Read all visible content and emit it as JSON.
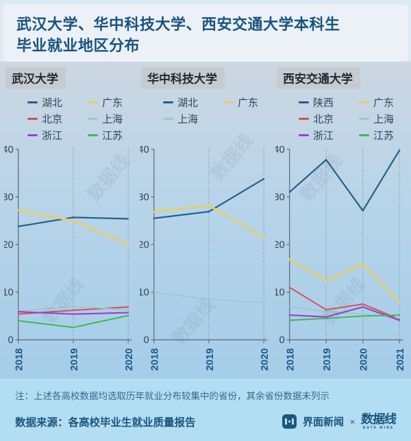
{
  "title": {
    "line1": "武汉大学、华中科技大学、西安交通大学本科生",
    "line2": "毕业就业地区分布"
  },
  "colors": {
    "axis": "#5b6770",
    "grid": "#5b6770",
    "tick_label": "#39424a",
    "year_label": "#1d5a87",
    "title": "#19537f",
    "panel_header_bg": "#c7cbcf",
    "accent": "#1a567f"
  },
  "watermark_text": "数据线",
  "chart_data": [
    {
      "type": "line",
      "title": "武汉大学",
      "x": [
        "2018",
        "2019",
        "2020"
      ],
      "ylim": [
        0,
        40
      ],
      "yticks": [
        0,
        10,
        20,
        30,
        40
      ],
      "grid": "dotted-vertical",
      "legend_position": "top",
      "series": [
        {
          "name": "湖北",
          "color": "#235e88",
          "width": 2.2,
          "values": [
            23.8,
            25.7,
            25.4
          ]
        },
        {
          "name": "广东",
          "color": "#e5cf6d",
          "width": 3,
          "values": [
            27.2,
            25.0,
            20.1
          ]
        },
        {
          "name": "北京",
          "color": "#d5504d",
          "width": 2,
          "values": [
            5.4,
            6.2,
            6.9
          ]
        },
        {
          "name": "上海",
          "color": "#9ec7c3",
          "width": 1.6,
          "values": [
            6.1,
            7.0,
            6.3
          ]
        },
        {
          "name": "浙江",
          "color": "#a23ad6",
          "width": 2.2,
          "values": [
            5.9,
            5.4,
            5.7
          ]
        },
        {
          "name": "江苏",
          "color": "#3dba51",
          "width": 2,
          "values": [
            4.0,
            2.6,
            5.1
          ]
        }
      ]
    },
    {
      "type": "line",
      "title": "华中科技大学",
      "x": [
        "2018",
        "2019",
        "2020"
      ],
      "ylim": [
        0,
        40
      ],
      "yticks": [
        0,
        10,
        20,
        30,
        40
      ],
      "grid": "dotted-vertical",
      "legend_position": "top",
      "series": [
        {
          "name": "湖北",
          "color": "#235e88",
          "width": 2.2,
          "values": [
            25.5,
            26.9,
            33.8
          ]
        },
        {
          "name": "广东",
          "color": "#e5cf6d",
          "width": 3,
          "values": [
            26.9,
            28.2,
            21.5
          ]
        },
        {
          "name": "上海",
          "color": "#9ec7c3",
          "width": 1.6,
          "values": [
            10.0,
            8.5,
            7.8
          ]
        }
      ]
    },
    {
      "type": "line",
      "title": "西安交通大学",
      "x": [
        "2018",
        "2019",
        "2020",
        "2021"
      ],
      "ylim": [
        0,
        40
      ],
      "yticks": [
        0,
        10,
        20,
        30,
        40
      ],
      "grid": "dotted-vertical",
      "legend_position": "top",
      "series": [
        {
          "name": "陕西",
          "color": "#235e88",
          "width": 2.2,
          "values": [
            31.0,
            37.8,
            27.1,
            39.8
          ]
        },
        {
          "name": "广东",
          "color": "#e5cf6d",
          "width": 3,
          "values": [
            16.9,
            12.4,
            15.9,
            7.9
          ]
        },
        {
          "name": "北京",
          "color": "#d5504d",
          "width": 2,
          "values": [
            11.0,
            6.3,
            7.5,
            4.3
          ]
        },
        {
          "name": "上海",
          "color": "#9ec7c3",
          "width": 1.6,
          "values": [
            7.0,
            5.9,
            5.4,
            4.5
          ]
        },
        {
          "name": "浙江",
          "color": "#a23ad6",
          "width": 2.2,
          "values": [
            5.2,
            4.8,
            6.9,
            4.1
          ]
        },
        {
          "name": "江苏",
          "color": "#3dba51",
          "width": 2,
          "values": [
            4.1,
            4.5,
            5.0,
            5.2
          ]
        }
      ]
    }
  ],
  "footer": {
    "note": "注：上述各高校数据均选取历年就业分布较集中的省份，其余省份数据未列示",
    "source": "数据来源：各高校毕业生就业质量报告",
    "brand": {
      "jiemian": "界面新闻",
      "cross": "×",
      "datawire": "数据线",
      "datawire_sub": "DATA WIRE"
    }
  }
}
